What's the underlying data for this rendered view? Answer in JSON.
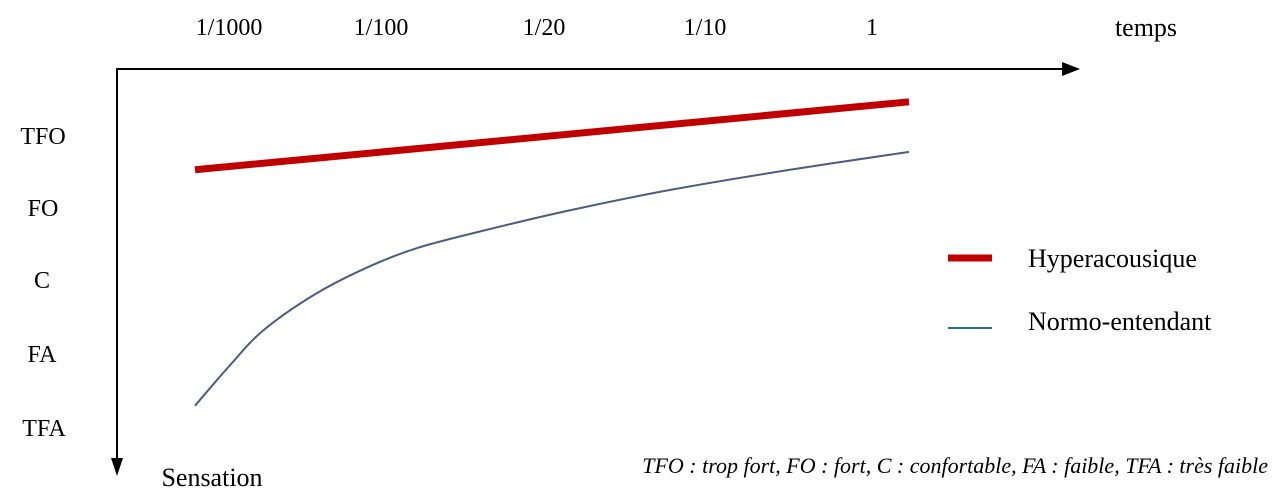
{
  "chart_data": {
    "type": "line",
    "title": "",
    "xlabel": "temps",
    "ylabel": "Sensation",
    "x_ticks": [
      "1/1000",
      "1/100",
      "1/20",
      "1/10",
      "1"
    ],
    "y_ticks": [
      "TFO",
      "FO",
      "C",
      "FA",
      "TFA"
    ],
    "legend_placement": "right",
    "grid": false,
    "footnote": "TFO : trop fort, FO : fort,  C : confortable, FA : faible, TFA : très faible",
    "series": [
      {
        "name": "Hyperacousique",
        "color": "#c00000",
        "x": [
          0,
          4.2
        ],
        "y": [
          3.5,
          4.45
        ]
      },
      {
        "name": "Normo-entendant",
        "color": "#4a5e82",
        "x": [
          0,
          0.2,
          0.4,
          0.7,
          1.0,
          1.3,
          1.7,
          2.2,
          2.8,
          3.5,
          4.2
        ],
        "y": [
          0.2,
          0.75,
          1.25,
          1.75,
          2.12,
          2.4,
          2.65,
          2.93,
          3.22,
          3.5,
          3.75
        ]
      }
    ]
  }
}
